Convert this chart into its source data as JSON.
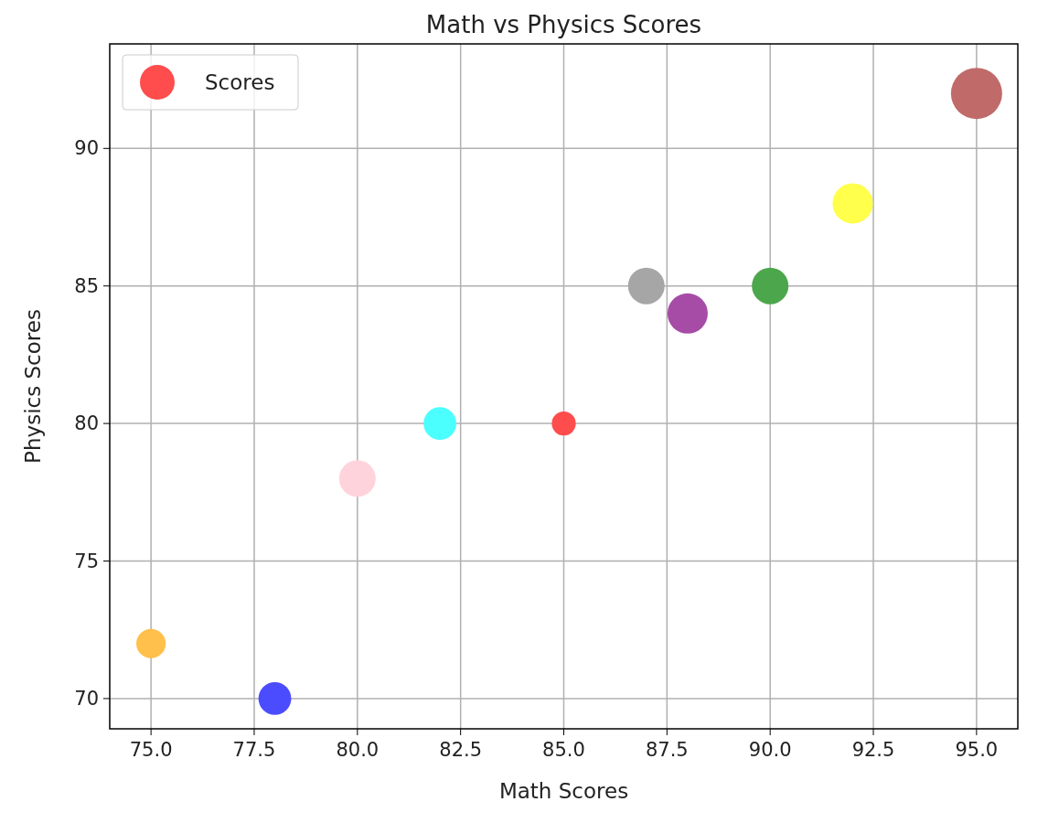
{
  "chart_data": {
    "type": "bubble",
    "title": "Math vs Physics Scores",
    "xlabel": "Math Scores",
    "ylabel": "Physics Scores",
    "x": [
      85,
      90,
      78,
      92,
      88,
      95,
      82,
      80,
      75,
      87
    ],
    "series": [
      {
        "name": "Scores",
        "color": "#ff4c4c",
        "values": [
          80,
          85,
          70,
          88,
          84,
          92,
          80,
          78,
          72,
          85
        ],
        "sizes": [
          0.22,
          0.51,
          0.41,
          0.62,
          0.62,
          1,
          0.41,
          0.51,
          0.33,
          0.51
        ],
        "colors": [
          "#ff4c4c",
          "#4ca64c",
          "#4c4cff",
          "#ffff4c",
          "#a64ca6",
          "#c06a6a",
          "#4cffff",
          "#ffd3db",
          "#ffc04c",
          "#a6a6a6"
        ]
      }
    ],
    "xlim": [
      74,
      96
    ],
    "xticks": [
      {
        "value": 75,
        "label": "75.0"
      },
      {
        "value": 77.5,
        "label": "77.5"
      },
      {
        "value": 80,
        "label": "80.0"
      },
      {
        "value": 82.5,
        "label": "82.5"
      },
      {
        "value": 85,
        "label": "85.0"
      },
      {
        "value": 87.5,
        "label": "87.5"
      },
      {
        "value": 90,
        "label": "90.0"
      },
      {
        "value": 92.5,
        "label": "92.5"
      },
      {
        "value": 95,
        "label": "95.0"
      }
    ],
    "ylim": [
      68.9,
      93.8
    ],
    "yticks": [
      70,
      75,
      80,
      85,
      90
    ],
    "grid": true,
    "legend": "top left"
  }
}
